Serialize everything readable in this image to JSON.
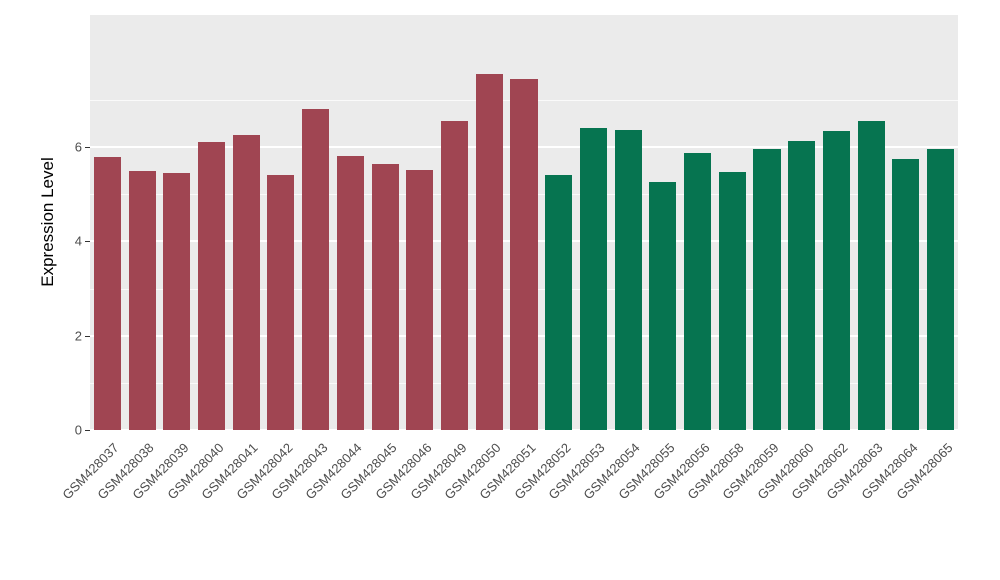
{
  "chart_data": {
    "type": "bar",
    "title": "",
    "xlabel": "",
    "ylabel": "Expression Level",
    "ylim": [
      0,
      8.8
    ],
    "yticks": [
      0,
      2,
      4,
      6
    ],
    "yticks_minor": [
      1,
      3,
      5,
      7
    ],
    "grid": "on",
    "legend": "none",
    "panel_background": "#EBEBEB",
    "gridline_color": "#FFFFFF",
    "categories": [
      "GSM428037",
      "GSM428038",
      "GSM428039",
      "GSM428040",
      "GSM428041",
      "GSM428042",
      "GSM428043",
      "GSM428044",
      "GSM428045",
      "GSM428046",
      "GSM428049",
      "GSM428050",
      "GSM428051",
      "GSM428052",
      "GSM428053",
      "GSM428054",
      "GSM428055",
      "GSM428056",
      "GSM428058",
      "GSM428059",
      "GSM428060",
      "GSM428062",
      "GSM428063",
      "GSM428064",
      "GSM428065"
    ],
    "values": [
      5.78,
      5.5,
      5.45,
      6.1,
      6.25,
      5.4,
      6.8,
      5.8,
      5.65,
      5.52,
      6.55,
      7.55,
      7.45,
      5.4,
      6.4,
      6.37,
      5.25,
      5.88,
      5.47,
      5.95,
      6.12,
      6.33,
      6.55,
      5.75,
      5.95
    ],
    "groups": [
      "red",
      "red",
      "red",
      "red",
      "red",
      "red",
      "red",
      "red",
      "red",
      "red",
      "red",
      "red",
      "red",
      "green",
      "green",
      "green",
      "green",
      "green",
      "green",
      "green",
      "green",
      "green",
      "green",
      "green",
      "green"
    ],
    "group_colors": {
      "red": "#A04552",
      "green": "#067450"
    }
  }
}
